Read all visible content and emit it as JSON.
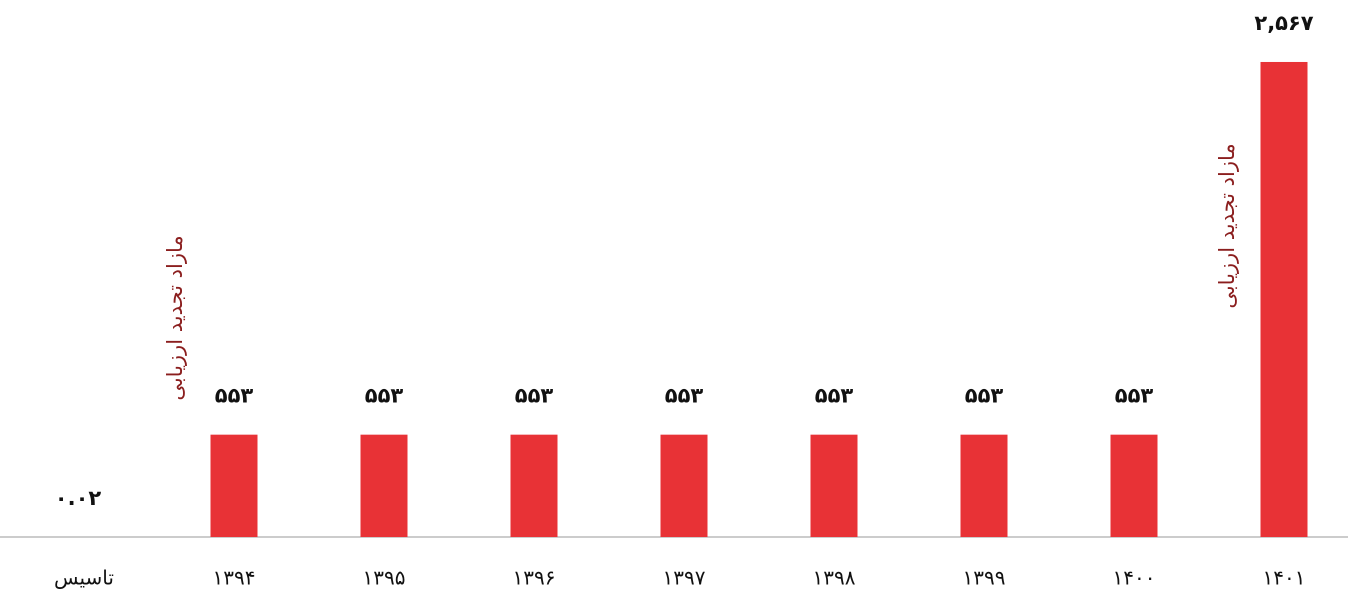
{
  "chart_data": {
    "type": "bar",
    "categories": [
      "تاسیس",
      "۱۳۹۴",
      "۱۳۹۵",
      "۱۳۹۶",
      "۱۳۹۷",
      "۱۳۹۸",
      "۱۳۹۹",
      "۱۴۰۰",
      "۱۴۰۱"
    ],
    "values": [
      0.02,
      553,
      553,
      553,
      553,
      553,
      553,
      553,
      2567
    ],
    "value_labels": [
      "۰.۰۲",
      "۵۵۳",
      "۵۵۳",
      "۵۵۳",
      "۵۵۳",
      "۵۵۳",
      "۵۵۳",
      "۵۵۳",
      "۲,۵۶۷"
    ],
    "color": "#e83236",
    "ylim": [
      0,
      2800
    ],
    "annotations": [
      "مازاد تجدید ارزیابی",
      "مازاد تجدید ارزیابی"
    ]
  }
}
